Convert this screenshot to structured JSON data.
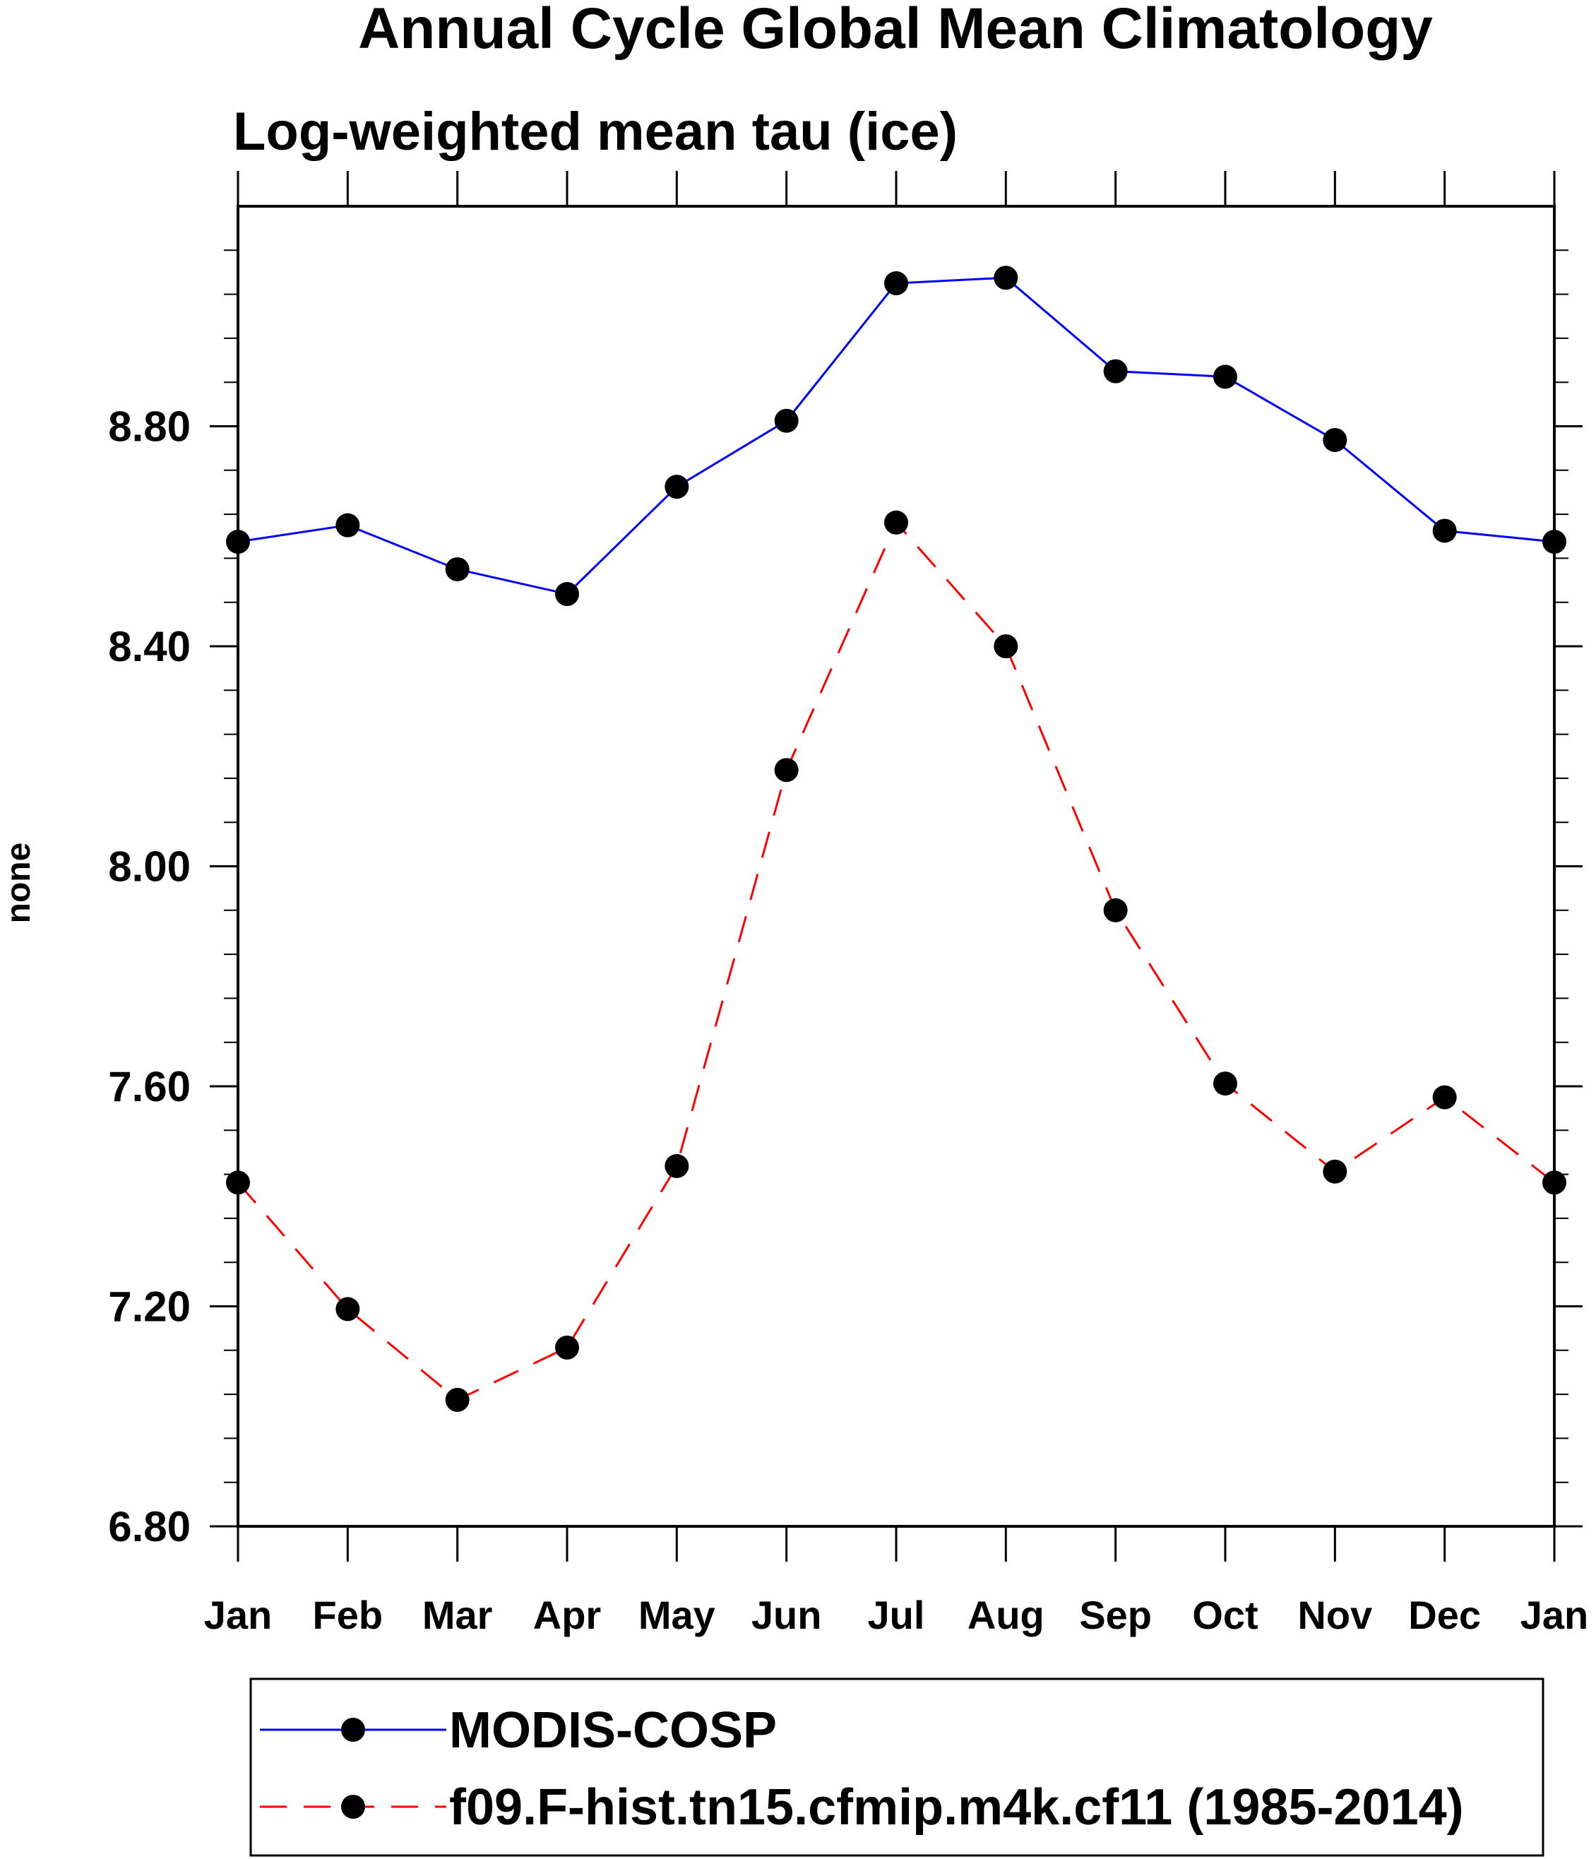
{
  "chart_data": {
    "type": "line",
    "title": "Annual Cycle Global Mean Climatology",
    "subtitle": "Log-weighted mean tau (ice)",
    "xlabel": "",
    "ylabel": "none",
    "categories": [
      "Jan",
      "Feb",
      "Mar",
      "Apr",
      "May",
      "Jun",
      "Jul",
      "Aug",
      "Sep",
      "Oct",
      "Nov",
      "Dec",
      "Jan"
    ],
    "ylim": [
      6.8,
      9.2
    ],
    "yticks": [
      "6.80",
      "7.20",
      "7.60",
      "8.00",
      "8.40",
      "8.80"
    ],
    "ytick_values": [
      6.8,
      7.2,
      7.6,
      8.0,
      8.4,
      8.8
    ],
    "series": [
      {
        "name": "MODIS-COSP",
        "color": "#0000ff",
        "dash": "solid",
        "values": [
          8.59,
          8.62,
          8.54,
          8.495,
          8.69,
          8.81,
          9.06,
          9.07,
          8.9,
          8.89,
          8.775,
          8.61,
          8.59
        ]
      },
      {
        "name": "f09.F-hist.tn15.cfmip.m4k.cf11 (1985-2014)",
        "color": "#ff0000",
        "dash": "dashed",
        "values": [
          7.425,
          7.195,
          7.03,
          7.125,
          7.455,
          8.175,
          8.625,
          8.4,
          7.92,
          7.605,
          7.445,
          7.58,
          7.425
        ]
      }
    ],
    "legend_position": "bottom",
    "grid": false
  }
}
